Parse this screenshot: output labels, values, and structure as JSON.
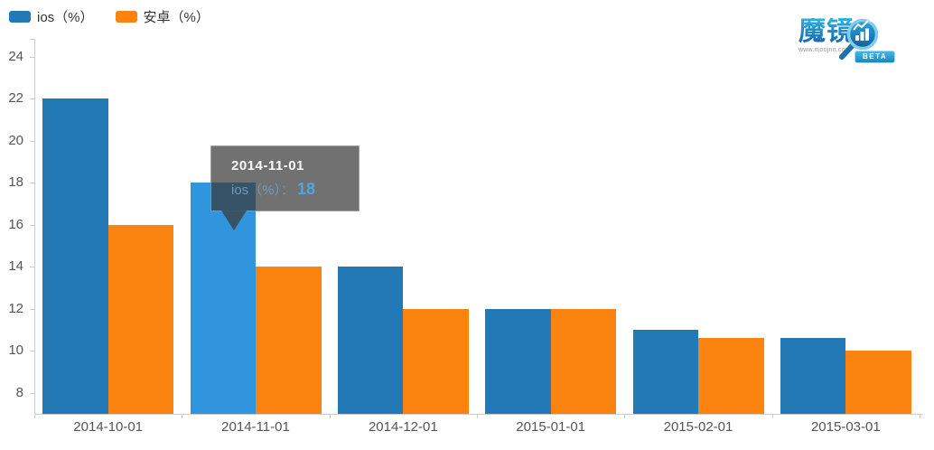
{
  "chart_data": {
    "type": "bar",
    "title": "",
    "categories": [
      "2014-10-01",
      "2014-11-01",
      "2014-12-01",
      "2015-01-01",
      "2015-02-01",
      "2015-03-01"
    ],
    "series": [
      {
        "name": "ios（%）",
        "color": "#2279b5",
        "highlight_color": "#3095dc",
        "values": [
          22,
          18,
          14,
          12,
          11,
          10.6
        ]
      },
      {
        "name": "安卓（%）",
        "color": "#fb8310",
        "values": [
          16,
          14,
          12,
          12,
          10.6,
          10
        ]
      }
    ],
    "ylim": [
      7,
      25
    ],
    "yticks": [
      8,
      10,
      12,
      14,
      16,
      18,
      20,
      22,
      24
    ],
    "grid": false,
    "legend_position": "top-left",
    "highlight": {
      "series_index": 0,
      "category_index": 1
    }
  },
  "legend": {
    "items": [
      {
        "label": "ios（%）",
        "color": "#2279b5"
      },
      {
        "label": "安卓（%）",
        "color": "#fb8310"
      }
    ]
  },
  "tooltip": {
    "date": "2014-11-01",
    "series_label": "ios（%）",
    "separator": "：",
    "value": "18"
  },
  "logo": {
    "brand": "魔镜",
    "url_text": "www.moojnn.com",
    "beta_label": "BETA"
  }
}
